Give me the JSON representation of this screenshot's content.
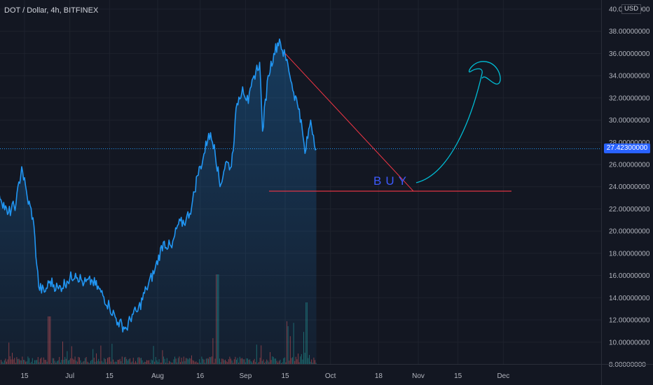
{
  "header": {
    "symbol_title": "DOT / Dollar, 4h, BITFINEX",
    "currency": "USD"
  },
  "annotation": {
    "buy_label": "BUY"
  },
  "colors": {
    "background": "#131722",
    "price_line": "#2196f3",
    "area_fill": "#2196f3",
    "grid": "#1e222d",
    "vol_up": "#26a69a",
    "vol_down": "#ef5350",
    "trendline": "#f23645",
    "projection": "#00bcd4",
    "badge": "#2962ff"
  },
  "chart_data": {
    "type": "line",
    "title": "DOT / Dollar, 4h, BITFINEX",
    "xlabel": "",
    "ylabel": "",
    "x_ticks": [
      "15",
      "Jul",
      "15",
      "Aug",
      "16",
      "Sep",
      "15",
      "Oct",
      "18",
      "Nov",
      "15",
      "Dec"
    ],
    "x_tick_dates": [
      "2021-06-15",
      "2021-07-01",
      "2021-07-15",
      "2021-08-01",
      "2021-08-16",
      "2021-09-01",
      "2021-09-15",
      "2021-10-01",
      "2021-10-18",
      "2021-11-01",
      "2021-11-15",
      "2021-12-01"
    ],
    "y_ticks": [
      "8.00000000",
      "10.00000000",
      "12.00000000",
      "14.00000000",
      "16.00000000",
      "18.00000000",
      "20.00000000",
      "22.00000000",
      "24.00000000",
      "26.00000000",
      "28.00000000",
      "30.00000000",
      "32.00000000",
      "34.00000000",
      "36.00000000",
      "38.00000000",
      "40.00000000"
    ],
    "ylim": [
      8,
      40
    ],
    "last_price": 27.423,
    "last_price_label": "27.42300000",
    "series": [
      {
        "x": [
          "2021-06-06",
          "2021-06-09",
          "2021-06-12",
          "2021-06-14",
          "2021-06-16",
          "2021-06-18",
          "2021-06-20",
          "2021-06-22",
          "2021-06-24",
          "2021-06-27",
          "2021-06-30",
          "2021-07-03",
          "2021-07-06",
          "2021-07-09",
          "2021-07-12",
          "2021-07-15",
          "2021-07-18",
          "2021-07-21",
          "2021-07-23",
          "2021-07-25",
          "2021-07-28",
          "2021-07-31",
          "2021-08-03",
          "2021-08-06",
          "2021-08-08",
          "2021-08-11",
          "2021-08-13",
          "2021-08-15",
          "2021-08-17",
          "2021-08-19",
          "2021-08-21",
          "2021-08-23",
          "2021-08-25",
          "2021-08-27",
          "2021-08-29",
          "2021-08-31",
          "2021-09-02",
          "2021-09-04",
          "2021-09-06",
          "2021-09-07",
          "2021-09-09",
          "2021-09-11",
          "2021-09-13",
          "2021-09-14",
          "2021-09-16",
          "2021-09-18",
          "2021-09-20",
          "2021-09-22",
          "2021-09-24",
          "2021-09-26"
        ],
        "values": [
          23.5,
          21.5,
          22.5,
          25.8,
          23.0,
          21.2,
          15.0,
          14.5,
          15.5,
          14.8,
          15.5,
          16.2,
          15.3,
          15.5,
          14.5,
          13.2,
          11.8,
          11.2,
          12.5,
          12.8,
          14.8,
          16.5,
          19.0,
          18.5,
          20.5,
          21.0,
          22.2,
          25.0,
          26.5,
          28.8,
          27.8,
          24.0,
          26.2,
          25.8,
          31.5,
          33.0,
          31.5,
          34.0,
          35.2,
          29.0,
          34.0,
          36.0,
          37.3,
          36.3,
          35.0,
          32.5,
          31.0,
          27.0,
          30.0,
          27.4
        ]
      }
    ],
    "volume_note": "volume histogram shown at bottom"
  }
}
